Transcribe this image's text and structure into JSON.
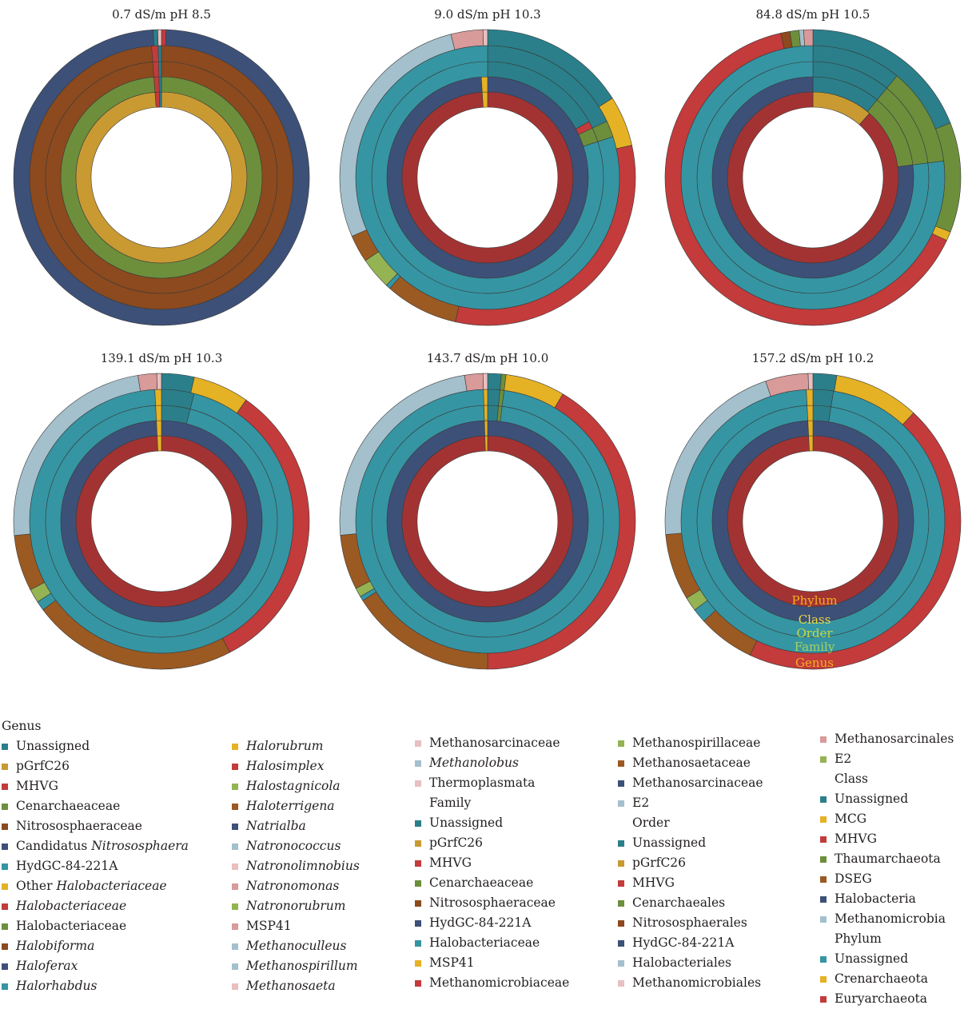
{
  "palette": {
    "teal": "#2a7f8a",
    "teal_light": "#3595a3",
    "tan": "#c99a32",
    "gold": "#e4b224",
    "red": "#c33b3b",
    "red_dark": "#a33333",
    "green": "#6d8f3c",
    "green_light": "#94b352",
    "brown": "#8c4a1e",
    "brown_med": "#9b5a22",
    "navy": "#3d5078",
    "pale_blue": "#a3c0cc",
    "pink": "#d99a9a",
    "pale_pink": "#e8c0c0"
  },
  "ring_labels": [
    "Phylum",
    "Class",
    "Order",
    "Family",
    "Genus"
  ],
  "chart_data": [
    {
      "type": "pie",
      "title": "0.7 dS/m pH 8.5",
      "rings": [
        {
          "level": "Phylum",
          "slices": [
            {
              "v": 98.8,
              "c": "tan"
            },
            {
              "v": 0.8,
              "c": "red"
            },
            {
              "v": 0.4,
              "c": "teal"
            }
          ]
        },
        {
          "level": "Class",
          "slices": [
            {
              "v": 98.8,
              "c": "green"
            },
            {
              "v": 0.8,
              "c": "red"
            },
            {
              "v": 0.4,
              "c": "teal"
            }
          ]
        },
        {
          "level": "Order",
          "slices": [
            {
              "v": 98.8,
              "c": "brown"
            },
            {
              "v": 0.8,
              "c": "red"
            },
            {
              "v": 0.4,
              "c": "teal"
            }
          ]
        },
        {
          "level": "Family",
          "slices": [
            {
              "v": 98.8,
              "c": "brown"
            },
            {
              "v": 0.8,
              "c": "red"
            },
            {
              "v": 0.4,
              "c": "teal"
            }
          ]
        },
        {
          "level": "Genus",
          "slices": [
            {
              "v": 0.5,
              "c": "red"
            },
            {
              "v": 98.6,
              "c": "navy"
            },
            {
              "v": 0.5,
              "c": "teal"
            },
            {
              "v": 0.4,
              "c": "pale_pink"
            }
          ]
        }
      ]
    },
    {
      "type": "pie",
      "title": "9.0 dS/m pH 10.3",
      "rings": [
        {
          "level": "Phylum",
          "slices": [
            {
              "v": 99.0,
              "c": "red_dark"
            },
            {
              "v": 1.0,
              "c": "gold"
            }
          ]
        },
        {
          "level": "Class",
          "slices": [
            {
              "v": 99.0,
              "c": "navy"
            },
            {
              "v": 1.0,
              "c": "gold"
            }
          ]
        },
        {
          "level": "Order",
          "slices": [
            {
              "v": 17.0,
              "c": "teal"
            },
            {
              "v": 1.0,
              "c": "red"
            },
            {
              "v": 2.0,
              "c": "green"
            },
            {
              "v": 80.0,
              "c": "teal_light"
            }
          ]
        },
        {
          "level": "Family",
          "slices": [
            {
              "v": 18.0,
              "c": "teal"
            },
            {
              "v": 2.0,
              "c": "green"
            },
            {
              "v": 80.0,
              "c": "teal_light"
            }
          ]
        },
        {
          "level": "Genus",
          "slices": [
            {
              "v": 16.0,
              "c": "teal"
            },
            {
              "v": 5.5,
              "c": "gold"
            },
            {
              "v": 32.0,
              "c": "red"
            },
            {
              "v": 8.0,
              "c": "brown_med"
            },
            {
              "v": 0.5,
              "c": "teal_light"
            },
            {
              "v": 3.5,
              "c": "green_light"
            },
            {
              "v": 3.0,
              "c": "brown_med"
            },
            {
              "v": 27.5,
              "c": "pale_blue"
            },
            {
              "v": 3.5,
              "c": "pink"
            },
            {
              "v": 0.5,
              "c": "pale_pink"
            }
          ]
        }
      ]
    },
    {
      "type": "pie",
      "title": "84.8 dS/m pH 10.5",
      "rings": [
        {
          "level": "Phylum",
          "slices": [
            {
              "v": 11.5,
              "c": "tan"
            },
            {
              "v": 88.5,
              "c": "red_dark"
            }
          ]
        },
        {
          "level": "Class",
          "slices": [
            {
              "v": 11.0,
              "c": "teal"
            },
            {
              "v": 12.0,
              "c": "green"
            },
            {
              "v": 77.0,
              "c": "navy"
            }
          ]
        },
        {
          "level": "Order",
          "slices": [
            {
              "v": 11.0,
              "c": "teal"
            },
            {
              "v": 12.0,
              "c": "green"
            },
            {
              "v": 77.0,
              "c": "teal_light"
            }
          ]
        },
        {
          "level": "Family",
          "slices": [
            {
              "v": 11.0,
              "c": "teal"
            },
            {
              "v": 12.0,
              "c": "green"
            },
            {
              "v": 77.0,
              "c": "teal_light"
            }
          ]
        },
        {
          "level": "Genus",
          "slices": [
            {
              "v": 19.0,
              "c": "teal"
            },
            {
              "v": 12.0,
              "c": "green"
            },
            {
              "v": 1.0,
              "c": "gold"
            },
            {
              "v": 64.5,
              "c": "red"
            },
            {
              "v": 1.0,
              "c": "brown"
            },
            {
              "v": 1.0,
              "c": "green"
            },
            {
              "v": 0.5,
              "c": "pale_blue"
            },
            {
              "v": 1.0,
              "c": "pink"
            }
          ]
        }
      ]
    },
    {
      "type": "pie",
      "title": "139.1 dS/m pH 10.3",
      "rings": [
        {
          "level": "Phylum",
          "slices": [
            {
              "v": 99.2,
              "c": "red_dark"
            },
            {
              "v": 0.8,
              "c": "gold"
            }
          ]
        },
        {
          "level": "Class",
          "slices": [
            {
              "v": 99.2,
              "c": "navy"
            },
            {
              "v": 0.8,
              "c": "gold"
            }
          ]
        },
        {
          "level": "Order",
          "slices": [
            {
              "v": 4.0,
              "c": "teal"
            },
            {
              "v": 95.2,
              "c": "teal_light"
            },
            {
              "v": 0.8,
              "c": "gold"
            }
          ]
        },
        {
          "level": "Family",
          "slices": [
            {
              "v": 4.0,
              "c": "teal"
            },
            {
              "v": 95.2,
              "c": "teal_light"
            },
            {
              "v": 0.8,
              "c": "gold"
            }
          ]
        },
        {
          "level": "Genus",
          "slices": [
            {
              "v": 3.5,
              "c": "teal"
            },
            {
              "v": 6.0,
              "c": "gold"
            },
            {
              "v": 32.0,
              "c": "red"
            },
            {
              "v": 22.0,
              "c": "brown_med"
            },
            {
              "v": 1.0,
              "c": "teal_light"
            },
            {
              "v": 1.5,
              "c": "green_light"
            },
            {
              "v": 6.0,
              "c": "brown_med"
            },
            {
              "v": 23.5,
              "c": "pale_blue"
            },
            {
              "v": 2.0,
              "c": "pink"
            },
            {
              "v": 0.5,
              "c": "pale_pink"
            }
          ]
        }
      ]
    },
    {
      "type": "pie",
      "title": "143.7 dS/m pH 10.0",
      "rings": [
        {
          "level": "Phylum",
          "slices": [
            {
              "v": 99.5,
              "c": "red_dark"
            },
            {
              "v": 0.5,
              "c": "gold"
            }
          ]
        },
        {
          "level": "Class",
          "slices": [
            {
              "v": 99.5,
              "c": "navy"
            },
            {
              "v": 0.5,
              "c": "gold"
            }
          ]
        },
        {
          "level": "Order",
          "slices": [
            {
              "v": 1.5,
              "c": "teal"
            },
            {
              "v": 0.5,
              "c": "green"
            },
            {
              "v": 97.5,
              "c": "teal_light"
            },
            {
              "v": 0.5,
              "c": "gold"
            }
          ]
        },
        {
          "level": "Family",
          "slices": [
            {
              "v": 1.5,
              "c": "teal"
            },
            {
              "v": 0.5,
              "c": "green"
            },
            {
              "v": 97.5,
              "c": "teal_light"
            },
            {
              "v": 0.5,
              "c": "gold"
            }
          ]
        },
        {
          "level": "Genus",
          "slices": [
            {
              "v": 1.5,
              "c": "teal"
            },
            {
              "v": 0.5,
              "c": "green"
            },
            {
              "v": 6.5,
              "c": "gold"
            },
            {
              "v": 41.5,
              "c": "red"
            },
            {
              "v": 16.0,
              "c": "brown_med"
            },
            {
              "v": 0.5,
              "c": "teal_light"
            },
            {
              "v": 1.0,
              "c": "green_light"
            },
            {
              "v": 6.0,
              "c": "brown_med"
            },
            {
              "v": 24.0,
              "c": "pale_blue"
            },
            {
              "v": 2.0,
              "c": "pink"
            },
            {
              "v": 0.5,
              "c": "pale_pink"
            }
          ]
        }
      ]
    },
    {
      "type": "pie",
      "title": "157.2 dS/m pH 10.2",
      "rings": [
        {
          "level": "Phylum",
          "slices": [
            {
              "v": 99.2,
              "c": "red_dark"
            },
            {
              "v": 0.8,
              "c": "gold"
            }
          ]
        },
        {
          "level": "Class",
          "slices": [
            {
              "v": 99.2,
              "c": "navy"
            },
            {
              "v": 0.8,
              "c": "gold"
            }
          ]
        },
        {
          "level": "Order",
          "slices": [
            {
              "v": 2.5,
              "c": "teal"
            },
            {
              "v": 96.7,
              "c": "teal_light"
            },
            {
              "v": 0.8,
              "c": "gold"
            }
          ]
        },
        {
          "level": "Family",
          "slices": [
            {
              "v": 2.5,
              "c": "teal"
            },
            {
              "v": 96.7,
              "c": "teal_light"
            },
            {
              "v": 0.8,
              "c": "gold"
            }
          ]
        },
        {
          "level": "Genus",
          "slices": [
            {
              "v": 2.5,
              "c": "teal"
            },
            {
              "v": 9.0,
              "c": "gold"
            },
            {
              "v": 43.5,
              "c": "red"
            },
            {
              "v": 6.0,
              "c": "brown_med"
            },
            {
              "v": 1.5,
              "c": "teal_light"
            },
            {
              "v": 1.5,
              "c": "green_light"
            },
            {
              "v": 7.0,
              "c": "brown_med"
            },
            {
              "v": 20.5,
              "c": "pale_blue"
            },
            {
              "v": 4.5,
              "c": "pink"
            },
            {
              "v": 0.5,
              "c": "pale_pink"
            }
          ]
        }
      ]
    }
  ],
  "legend": {
    "genus_heading": "Genus",
    "genus": [
      {
        "label": "Unassigned",
        "c": "teal"
      },
      {
        "label": "pGrfC26",
        "c": "tan"
      },
      {
        "label": "MHVG",
        "c": "red"
      },
      {
        "label": "Cenarchaeaceae",
        "c": "green"
      },
      {
        "label": "Nitrososphaeraceae",
        "c": "brown"
      },
      {
        "label": "Candidatus ",
        "italic": "Nitrososphaera",
        "c": "navy"
      },
      {
        "label": "HydGC-84-221A",
        "c": "teal_light"
      },
      {
        "label": "Other ",
        "italic": "Halobacteriaceae",
        "c": "gold"
      },
      {
        "italic": "Halobacteriaceae",
        "c": "red"
      },
      {
        "label": "Halobacteriaceae",
        "c": "green"
      },
      {
        "italic": "Halobiforma",
        "c": "brown"
      },
      {
        "italic": "Haloferax",
        "c": "navy"
      },
      {
        "italic": "Halorhabdus",
        "c": "teal_light"
      },
      {
        "italic": "Halorubrum",
        "c": "gold"
      },
      {
        "italic": "Halosimplex",
        "c": "red"
      },
      {
        "italic": "Halostagnicola",
        "c": "green_light"
      },
      {
        "italic": "Haloterrigena",
        "c": "brown_med"
      },
      {
        "italic": "Natrialba",
        "c": "navy"
      },
      {
        "italic": "Natronococcus",
        "c": "pale_blue"
      },
      {
        "italic": "Natronolimnobius",
        "c": "pale_pink"
      },
      {
        "italic": "Natronomonas",
        "c": "pink"
      },
      {
        "italic": "Natronorubrum",
        "c": "green_light"
      },
      {
        "label": "MSP41",
        "c": "pink"
      },
      {
        "italic": "Methanoculleus",
        "c": "pale_blue"
      },
      {
        "italic": "Methanospirillum",
        "c": "pale_blue"
      },
      {
        "italic": "Methanosaeta",
        "c": "pale_pink"
      },
      {
        "label": "Methanosarcinaceae",
        "c": "pale_pink"
      },
      {
        "italic": "Methanolobus",
        "c": "pale_blue"
      },
      {
        "label": "Thermoplasmata",
        "c": "pale_pink"
      }
    ],
    "family_heading": "Family",
    "family": [
      {
        "label": "Unassigned",
        "c": "teal"
      },
      {
        "label": "pGrfC26",
        "c": "tan"
      },
      {
        "label": "MHVG",
        "c": "red"
      },
      {
        "label": "Cenarchaeaceae",
        "c": "green"
      },
      {
        "label": "Nitrososphaeraceae",
        "c": "brown"
      },
      {
        "label": "HydGC-84-221A",
        "c": "navy"
      },
      {
        "label": "Halobacteriaceae",
        "c": "teal_light"
      },
      {
        "label": "MSP41",
        "c": "gold"
      },
      {
        "label": "Methanomicrobiaceae",
        "c": "red"
      },
      {
        "label": "Methanospirillaceae",
        "c": "green_light"
      },
      {
        "label": "Methanosaetaceae",
        "c": "brown_med"
      },
      {
        "label": "Methanosarcinaceae",
        "c": "navy"
      },
      {
        "label": "E2",
        "c": "pale_blue"
      }
    ],
    "order_heading": "Order",
    "order": [
      {
        "label": "Unassigned",
        "c": "teal"
      },
      {
        "label": "pGrfC26",
        "c": "tan"
      },
      {
        "label": "MHVG",
        "c": "red"
      },
      {
        "label": "Cenarchaeales",
        "c": "green"
      },
      {
        "label": "Nitrososphaerales",
        "c": "brown"
      },
      {
        "label": "HydGC-84-221A",
        "c": "navy"
      },
      {
        "label": "Halobacteriales",
        "c": "pale_blue"
      },
      {
        "label": "Methanomicrobiales",
        "c": "pale_pink"
      },
      {
        "label": "Methanosarcinales",
        "c": "pink"
      },
      {
        "label": "E2",
        "c": "green_light"
      }
    ],
    "class_heading": "Class",
    "class": [
      {
        "label": "Unassigned",
        "c": "teal"
      },
      {
        "label": "MCG",
        "c": "gold"
      },
      {
        "label": "MHVG",
        "c": "red"
      },
      {
        "label": "Thaumarchaeota",
        "c": "green"
      },
      {
        "label": "DSEG",
        "c": "brown_med"
      },
      {
        "label": "Halobacteria",
        "c": "navy"
      },
      {
        "label": "Methanomicrobia",
        "c": "pale_blue"
      }
    ],
    "phylum_heading": "Phylum",
    "phylum": [
      {
        "label": "Unassigned",
        "c": "teal_light"
      },
      {
        "label": "Crenarchaeota",
        "c": "gold"
      },
      {
        "label": "Euryarchaeota",
        "c": "red"
      }
    ]
  }
}
